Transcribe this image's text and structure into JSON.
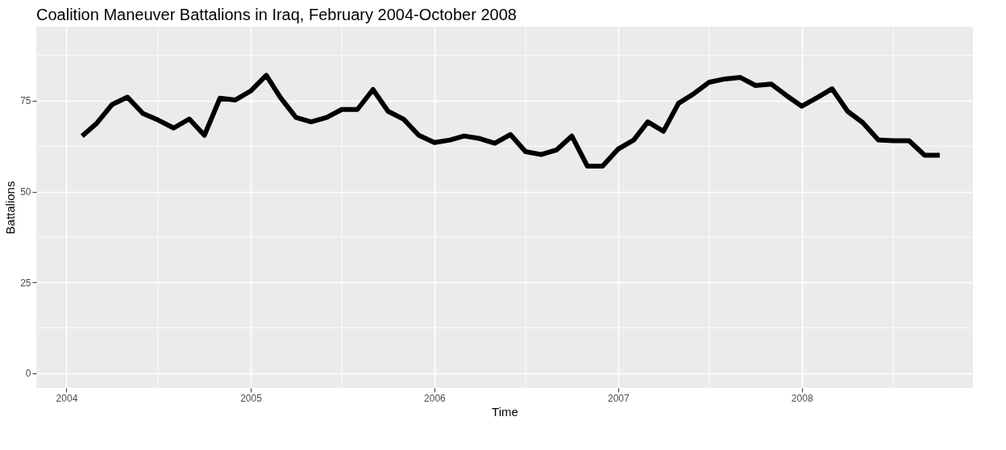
{
  "chart_data": {
    "type": "line",
    "title": "Coalition Maneuver Battalions in Iraq, February 2004-October 2008",
    "xlabel": "Time",
    "ylabel": "Battalions",
    "x": [
      "2004-02",
      "2004-03",
      "2004-04",
      "2004-05",
      "2004-06",
      "2004-07",
      "2004-08",
      "2004-09",
      "2004-10",
      "2004-11",
      "2004-12",
      "2005-01",
      "2005-02",
      "2005-03",
      "2005-04",
      "2005-05",
      "2005-06",
      "2005-07",
      "2005-08",
      "2005-09",
      "2005-10",
      "2005-11",
      "2005-12",
      "2006-01",
      "2006-02",
      "2006-03",
      "2006-04",
      "2006-05",
      "2006-06",
      "2006-07",
      "2006-08",
      "2006-09",
      "2006-10",
      "2006-11",
      "2006-12",
      "2007-01",
      "2007-02",
      "2007-03",
      "2007-04",
      "2007-05",
      "2007-06",
      "2007-07",
      "2007-08",
      "2007-09",
      "2007-10",
      "2007-11",
      "2007-12",
      "2008-01",
      "2008-02",
      "2008-03",
      "2008-04",
      "2008-05",
      "2008-06",
      "2008-07",
      "2008-08",
      "2008-09",
      "2008-10"
    ],
    "series": [
      {
        "color": "#000000",
        "values": [
          65.3,
          68.8,
          74,
          76,
          71.5,
          69.7,
          67.5,
          70,
          65.5,
          75.7,
          75.2,
          77.7,
          82,
          75.9,
          70.4,
          69.2,
          70.4,
          72.6,
          72.6,
          78.1,
          72.1,
          69.9,
          65.5,
          63.5,
          64.2,
          65.3,
          64.6,
          63.3,
          65.7,
          61,
          60.2,
          61.5,
          65.3,
          57,
          57,
          61.7,
          64.2,
          69.2,
          66.6,
          74.3,
          77,
          80.1,
          81,
          81.4,
          79.2,
          79.6,
          76.5,
          73.5,
          75.9,
          78.3,
          72.1,
          69,
          64.2,
          64,
          64,
          60,
          60
        ]
      }
    ],
    "xlim": [
      "2003-11-02",
      "2008-12-06"
    ],
    "xticks": [
      "2004",
      {
        "value": "2004-07",
        "label": null
      },
      "2005",
      {
        "value": "2005-07",
        "label": null
      },
      "2006",
      {
        "value": "2006-07",
        "label": null
      },
      "2007",
      {
        "value": "2007-07",
        "label": null
      },
      "2008",
      {
        "value": "2008-07",
        "label": null
      }
    ],
    "ylim": [
      -4,
      95.4
    ],
    "yticks": [
      0,
      {
        "value": 12.5,
        "label": null
      },
      25,
      {
        "value": 37.5,
        "label": null
      },
      50,
      {
        "value": 62.5,
        "label": null
      },
      75,
      {
        "value": 87.5,
        "label": null
      }
    ],
    "grid": true,
    "marker": "none",
    "line_style": "solid"
  }
}
